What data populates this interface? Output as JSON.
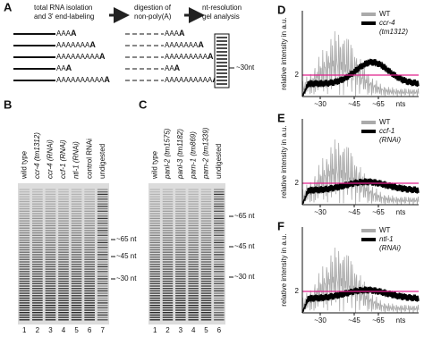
{
  "panelA": {
    "label": "A",
    "step1": [
      "total RNA isolation",
      "and 3' end-labeling"
    ],
    "step2": [
      "digestion of",
      "non-poly(A)"
    ],
    "step3": [
      "nt-resolution",
      "gel analysis"
    ],
    "tails": [
      "AAAA",
      "AAAAAAAA",
      "AAAAAAAAAA",
      "AAA",
      "AAAAAAAAAAA"
    ],
    "marker": "~30nt"
  },
  "panelB": {
    "label": "B",
    "lanes": [
      "wild type",
      "ccr-4 (tm1312)",
      "ccr-4 (RNAi)",
      "ccf-1 (RNAi)",
      "ntl-1 (RNAi)",
      "control RNAi",
      "undigested"
    ],
    "numbers": [
      1,
      2,
      3,
      4,
      5,
      6,
      7
    ],
    "markers": [
      "~65 nt",
      "~45 nt",
      "~30 nt"
    ]
  },
  "panelC": {
    "label": "C",
    "lanes": [
      "wild type",
      "panl-2 (tm1575)",
      "panl-3 (tm1182)",
      "parn-1 (tm869)",
      "parn-2 (tm1339)",
      "undigested"
    ],
    "numbers": [
      1,
      2,
      3,
      4,
      5,
      6
    ],
    "markers": [
      "~65 nt",
      "~45 nt",
      "~30 nt"
    ]
  },
  "plots": [
    {
      "label": "D",
      "legend": [
        "WT",
        "ccr-4",
        "(tm1312)"
      ],
      "ylabel": "relative intensity in a.u.",
      "ytick": 2,
      "xticks": [
        "~30",
        "~45",
        "~65",
        "nts"
      ]
    },
    {
      "label": "E",
      "legend": [
        "WT",
        "ccf-1",
        "(RNAi)"
      ],
      "ylabel": "relative intensity in a.u.",
      "ytick": 2,
      "xticks": [
        "~30",
        "~45",
        "~65",
        "nts"
      ]
    },
    {
      "label": "F",
      "legend": [
        "WT",
        "ntl-1",
        "(RNAi)"
      ],
      "ylabel": "relative intensity in a.u.",
      "ytick": 2,
      "xticks": [
        "~30",
        "~45",
        "~65",
        "nts"
      ]
    }
  ]
}
